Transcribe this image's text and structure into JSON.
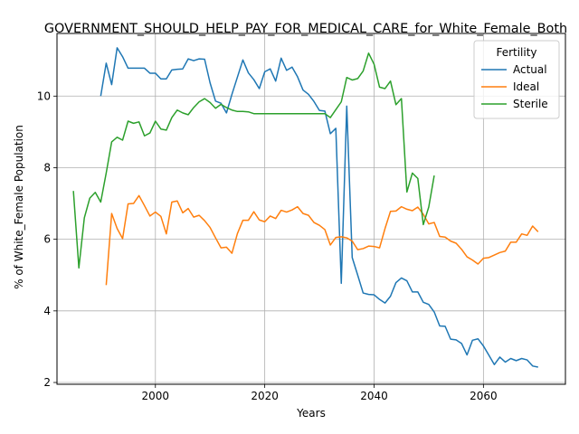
{
  "chart_data": {
    "type": "line",
    "title": "GOVERNMENT_SHOULD_HELP_PAY_FOR_MEDICAL_CARE_for_White_Female_Both",
    "xlabel": "Years",
    "ylabel": "% of White_Female Population",
    "xlim": [
      1982,
      2075
    ],
    "ylim": [
      1.95,
      11.75
    ],
    "xticks": [
      2000,
      2020,
      2040,
      2060
    ],
    "yticks": [
      2,
      4,
      6,
      8,
      10
    ],
    "grid": true,
    "legend": {
      "title": "Fertility",
      "placement": "top-right"
    },
    "series": [
      {
        "name": "Actual",
        "color": "#1f77b4",
        "points": [
          [
            1990,
            10.0
          ],
          [
            1991,
            10.92
          ],
          [
            1992,
            10.32
          ],
          [
            1993,
            11.35
          ],
          [
            1994,
            11.1
          ],
          [
            1995,
            10.78
          ],
          [
            1996,
            10.78
          ],
          [
            1997,
            10.78
          ],
          [
            1998,
            10.78
          ],
          [
            1999,
            10.64
          ],
          [
            2000,
            10.64
          ],
          [
            2001,
            10.48
          ],
          [
            2002,
            10.48
          ],
          [
            2003,
            10.73
          ],
          [
            2004,
            10.75
          ],
          [
            2005,
            10.76
          ],
          [
            2006,
            11.04
          ],
          [
            2007,
            10.99
          ],
          [
            2008,
            11.04
          ],
          [
            2009,
            11.03
          ],
          [
            2010,
            10.37
          ],
          [
            2011,
            9.86
          ],
          [
            2012,
            9.8
          ],
          [
            2013,
            9.53
          ],
          [
            2014,
            10.05
          ],
          [
            2015,
            10.53
          ],
          [
            2016,
            11.01
          ],
          [
            2017,
            10.65
          ],
          [
            2018,
            10.46
          ],
          [
            2019,
            10.21
          ],
          [
            2020,
            10.68
          ],
          [
            2021,
            10.76
          ],
          [
            2022,
            10.42
          ],
          [
            2023,
            11.06
          ],
          [
            2024,
            10.72
          ],
          [
            2025,
            10.81
          ],
          [
            2026,
            10.54
          ],
          [
            2027,
            10.17
          ],
          [
            2028,
            10.05
          ],
          [
            2029,
            9.85
          ],
          [
            2030,
            9.6
          ],
          [
            2031,
            9.58
          ],
          [
            2032,
            8.95
          ],
          [
            2033,
            9.1
          ],
          [
            2034,
            4.77
          ],
          [
            2035,
            9.72
          ],
          [
            2036,
            5.49
          ],
          [
            2037,
            5.0
          ],
          [
            2038,
            4.5
          ],
          [
            2039,
            4.46
          ],
          [
            2040,
            4.45
          ],
          [
            2041,
            4.32
          ],
          [
            2042,
            4.22
          ],
          [
            2043,
            4.41
          ],
          [
            2044,
            4.79
          ],
          [
            2045,
            4.92
          ],
          [
            2046,
            4.84
          ],
          [
            2047,
            4.53
          ],
          [
            2048,
            4.53
          ],
          [
            2049,
            4.24
          ],
          [
            2050,
            4.18
          ],
          [
            2051,
            3.97
          ],
          [
            2052,
            3.58
          ],
          [
            2053,
            3.57
          ],
          [
            2054,
            3.21
          ],
          [
            2055,
            3.19
          ],
          [
            2056,
            3.09
          ],
          [
            2057,
            2.77
          ],
          [
            2058,
            3.18
          ],
          [
            2059,
            3.22
          ],
          [
            2060,
            3.02
          ],
          [
            2061,
            2.76
          ],
          [
            2062,
            2.5
          ],
          [
            2063,
            2.71
          ],
          [
            2064,
            2.57
          ],
          [
            2065,
            2.67
          ],
          [
            2066,
            2.61
          ],
          [
            2067,
            2.67
          ],
          [
            2068,
            2.63
          ],
          [
            2069,
            2.46
          ],
          [
            2070,
            2.43
          ]
        ]
      },
      {
        "name": "Ideal",
        "color": "#ff7f0e",
        "points": [
          [
            1991,
            4.72
          ],
          [
            1992,
            6.72
          ],
          [
            1993,
            6.3
          ],
          [
            1994,
            6.02
          ],
          [
            1995,
            6.99
          ],
          [
            1996,
            7.0
          ],
          [
            1997,
            7.22
          ],
          [
            1998,
            6.94
          ],
          [
            1999,
            6.65
          ],
          [
            2000,
            6.76
          ],
          [
            2001,
            6.64
          ],
          [
            2002,
            6.15
          ],
          [
            2003,
            7.04
          ],
          [
            2004,
            7.07
          ],
          [
            2005,
            6.74
          ],
          [
            2006,
            6.86
          ],
          [
            2007,
            6.62
          ],
          [
            2008,
            6.67
          ],
          [
            2009,
            6.52
          ],
          [
            2010,
            6.33
          ],
          [
            2011,
            6.04
          ],
          [
            2012,
            5.76
          ],
          [
            2013,
            5.78
          ],
          [
            2014,
            5.61
          ],
          [
            2015,
            6.16
          ],
          [
            2016,
            6.53
          ],
          [
            2017,
            6.53
          ],
          [
            2018,
            6.77
          ],
          [
            2019,
            6.54
          ],
          [
            2020,
            6.49
          ],
          [
            2021,
            6.65
          ],
          [
            2022,
            6.58
          ],
          [
            2023,
            6.81
          ],
          [
            2024,
            6.76
          ],
          [
            2025,
            6.82
          ],
          [
            2026,
            6.91
          ],
          [
            2027,
            6.72
          ],
          [
            2028,
            6.67
          ],
          [
            2029,
            6.47
          ],
          [
            2030,
            6.39
          ],
          [
            2031,
            6.27
          ],
          [
            2032,
            5.84
          ],
          [
            2033,
            6.05
          ],
          [
            2034,
            6.07
          ],
          [
            2035,
            6.04
          ],
          [
            2036,
            5.95
          ],
          [
            2037,
            5.71
          ],
          [
            2038,
            5.74
          ],
          [
            2039,
            5.81
          ],
          [
            2040,
            5.8
          ],
          [
            2041,
            5.76
          ],
          [
            2042,
            6.3
          ],
          [
            2043,
            6.78
          ],
          [
            2044,
            6.79
          ],
          [
            2045,
            6.91
          ],
          [
            2046,
            6.84
          ],
          [
            2047,
            6.8
          ],
          [
            2048,
            6.9
          ],
          [
            2049,
            6.7
          ],
          [
            2050,
            6.43
          ],
          [
            2051,
            6.47
          ],
          [
            2052,
            6.08
          ],
          [
            2053,
            6.06
          ],
          [
            2054,
            5.95
          ],
          [
            2055,
            5.89
          ],
          [
            2056,
            5.72
          ],
          [
            2057,
            5.51
          ],
          [
            2058,
            5.42
          ],
          [
            2059,
            5.31
          ],
          [
            2060,
            5.47
          ],
          [
            2061,
            5.49
          ],
          [
            2062,
            5.56
          ],
          [
            2063,
            5.63
          ],
          [
            2064,
            5.67
          ],
          [
            2065,
            5.92
          ],
          [
            2066,
            5.92
          ],
          [
            2067,
            6.15
          ],
          [
            2068,
            6.11
          ],
          [
            2069,
            6.37
          ],
          [
            2070,
            6.21
          ]
        ]
      },
      {
        "name": "Sterile",
        "color": "#2ca02c",
        "points": [
          [
            1985,
            7.35
          ],
          [
            1986,
            5.2
          ],
          [
            1987,
            6.6
          ],
          [
            1988,
            7.15
          ],
          [
            1989,
            7.31
          ],
          [
            1990,
            7.04
          ],
          [
            1991,
            7.85
          ],
          [
            1992,
            8.72
          ],
          [
            1993,
            8.85
          ],
          [
            1994,
            8.77
          ],
          [
            1995,
            9.3
          ],
          [
            1996,
            9.24
          ],
          [
            1997,
            9.28
          ],
          [
            1998,
            8.89
          ],
          [
            1999,
            8.97
          ],
          [
            2000,
            9.3
          ],
          [
            2001,
            9.08
          ],
          [
            2002,
            9.05
          ],
          [
            2003,
            9.4
          ],
          [
            2004,
            9.61
          ],
          [
            2005,
            9.53
          ],
          [
            2006,
            9.48
          ],
          [
            2007,
            9.68
          ],
          [
            2008,
            9.84
          ],
          [
            2009,
            9.93
          ],
          [
            2010,
            9.82
          ],
          [
            2011,
            9.66
          ],
          [
            2012,
            9.77
          ],
          [
            2013,
            9.68
          ],
          [
            2014,
            9.61
          ],
          [
            2015,
            9.57
          ],
          [
            2016,
            9.57
          ],
          [
            2017,
            9.56
          ],
          [
            2018,
            9.51
          ],
          [
            2019,
            9.51
          ],
          [
            2020,
            9.51
          ],
          [
            2021,
            9.51
          ],
          [
            2022,
            9.51
          ],
          [
            2023,
            9.51
          ],
          [
            2024,
            9.51
          ],
          [
            2025,
            9.51
          ],
          [
            2026,
            9.51
          ],
          [
            2027,
            9.51
          ],
          [
            2028,
            9.51
          ],
          [
            2029,
            9.51
          ],
          [
            2030,
            9.51
          ],
          [
            2031,
            9.51
          ],
          [
            2032,
            9.4
          ],
          [
            2033,
            9.62
          ],
          [
            2034,
            9.84
          ],
          [
            2035,
            10.52
          ],
          [
            2036,
            10.45
          ],
          [
            2037,
            10.49
          ],
          [
            2038,
            10.7
          ],
          [
            2039,
            11.2
          ],
          [
            2040,
            10.89
          ],
          [
            2041,
            10.25
          ],
          [
            2042,
            10.21
          ],
          [
            2043,
            10.42
          ],
          [
            2044,
            9.76
          ],
          [
            2045,
            9.93
          ],
          [
            2046,
            7.32
          ],
          [
            2047,
            7.85
          ],
          [
            2048,
            7.7
          ],
          [
            2049,
            6.41
          ],
          [
            2050,
            6.9
          ],
          [
            2051,
            7.78
          ]
        ]
      }
    ]
  }
}
